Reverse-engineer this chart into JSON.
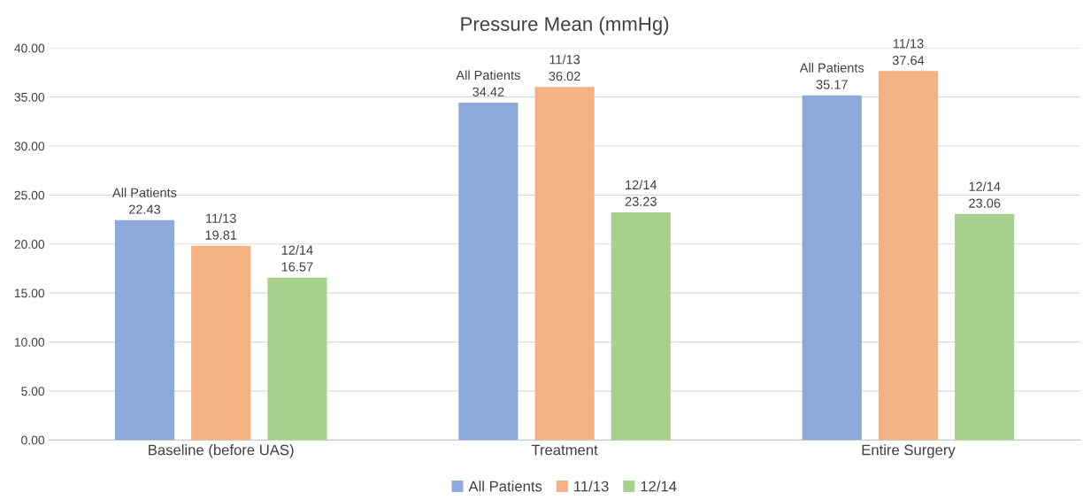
{
  "chart_data": {
    "type": "bar",
    "title": "Pressure Mean (mmHg)",
    "categories": [
      "Baseline (before UAS)",
      "Treatment",
      "Entire Surgery"
    ],
    "series": [
      {
        "name": "All Patients",
        "color": "#8eaadc",
        "values": [
          22.43,
          34.42,
          35.17
        ]
      },
      {
        "name": "11/13",
        "color": "#f4b183",
        "values": [
          19.81,
          36.02,
          37.64
        ]
      },
      {
        "name": "12/14",
        "color": "#a9d18e",
        "values": [
          16.57,
          23.23,
          23.06
        ]
      }
    ],
    "ylim": [
      0,
      40
    ],
    "yticks": [
      {
        "value": 0,
        "label": "0.00"
      },
      {
        "value": 5,
        "label": "5.00"
      },
      {
        "value": 10,
        "label": "10.00"
      },
      {
        "value": 15,
        "label": "15.00"
      },
      {
        "value": 20,
        "label": "20.00"
      },
      {
        "value": 25,
        "label": "25.00"
      },
      {
        "value": 30,
        "label": "30.00"
      },
      {
        "value": 35,
        "label": "35.00"
      },
      {
        "value": 40,
        "label": "40.00"
      }
    ],
    "grid": "y",
    "legend": "bottom",
    "data_labels": true
  }
}
